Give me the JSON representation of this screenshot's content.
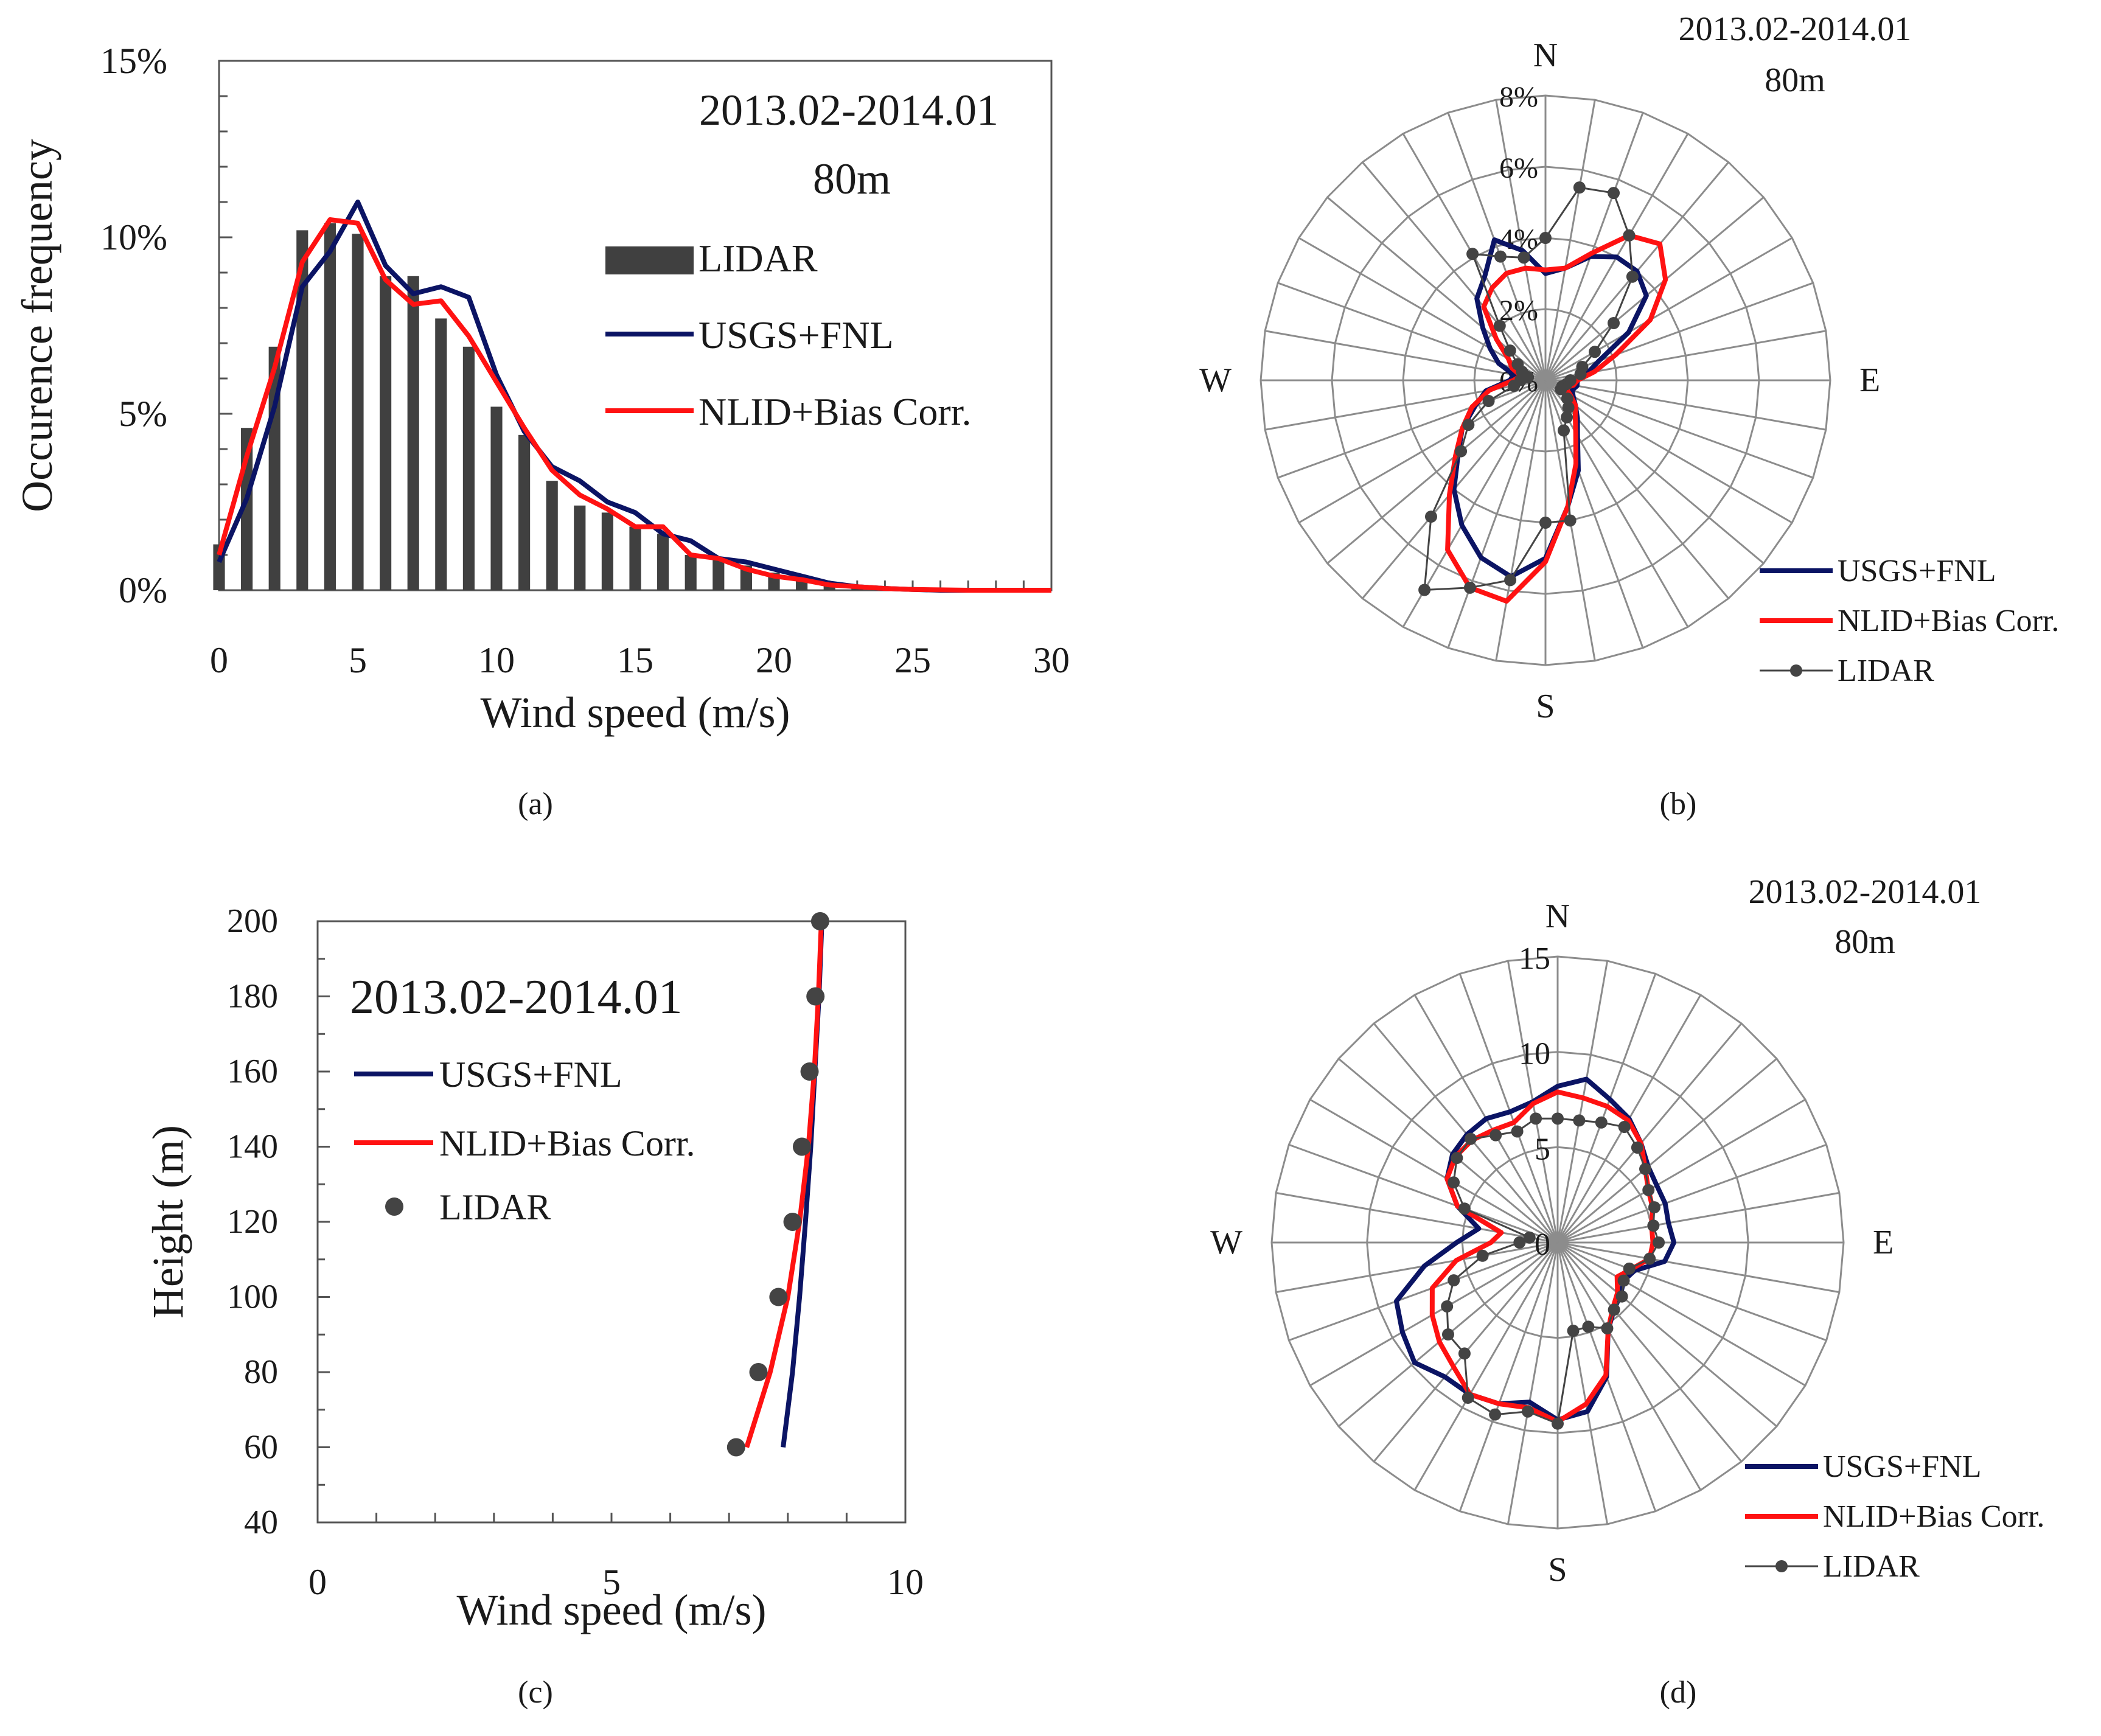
{
  "colors": {
    "usgs": "#0b1464",
    "nlid": "#ff1212",
    "lidar": "#444444",
    "bar": "#404040",
    "grid": "#8c8c8c",
    "axis": "#555555"
  },
  "chart_data": [
    {
      "id": "a",
      "type": "bar",
      "caption": "(a)",
      "annotation": [
        "2013.02-2014.01",
        "80m"
      ],
      "xlabel": "Wind speed (m/s)",
      "ylabel": "Occurence frequency",
      "xlim": [
        0,
        30
      ],
      "ylim": [
        0,
        15
      ],
      "xticks": [
        "0",
        "5",
        "10",
        "15",
        "20",
        "25",
        "30"
      ],
      "yticks": [
        "0%",
        "5%",
        "10%",
        "15%"
      ],
      "legend": [
        "LIDAR",
        "USGS+FNL",
        "NLID+Bias Corr."
      ],
      "x": [
        0,
        1,
        2,
        3,
        4,
        5,
        6,
        7,
        8,
        9,
        10,
        11,
        12,
        13,
        14,
        15,
        16,
        17,
        18,
        19,
        20,
        21,
        22,
        23,
        24,
        25,
        26,
        27,
        28,
        29,
        30
      ],
      "lidar_bars": [
        1.3,
        4.6,
        6.9,
        10.2,
        10.4,
        10.1,
        8.9,
        8.9,
        7.7,
        6.9,
        5.2,
        4.4,
        3.1,
        2.4,
        2.2,
        1.8,
        1.6,
        1.0,
        0.9,
        0.7,
        0.5,
        0.35,
        0.2,
        0.1,
        0.05,
        0.03,
        0.02,
        0.01,
        0,
        0,
        0
      ],
      "series": [
        {
          "name": "USGS+FNL",
          "values": [
            0.8,
            2.6,
            5.2,
            8.6,
            9.6,
            11.0,
            9.2,
            8.4,
            8.6,
            8.3,
            6.1,
            4.5,
            3.5,
            3.1,
            2.5,
            2.2,
            1.6,
            1.4,
            0.9,
            0.8,
            0.6,
            0.4,
            0.2,
            0.1,
            0.05,
            0.02,
            0,
            0,
            0,
            0,
            0
          ]
        },
        {
          "name": "NLID+Bias Corr.",
          "values": [
            1.0,
            3.8,
            6.3,
            9.3,
            10.5,
            10.4,
            8.8,
            8.1,
            8.2,
            7.2,
            5.9,
            4.6,
            3.4,
            2.7,
            2.3,
            1.8,
            1.8,
            1.0,
            0.9,
            0.6,
            0.4,
            0.3,
            0.15,
            0.1,
            0.05,
            0.02,
            0.01,
            0,
            0,
            0,
            0
          ]
        }
      ]
    },
    {
      "id": "b",
      "type": "radar",
      "caption": "(b)",
      "annotation": [
        "2013.02-2014.01",
        "80m"
      ],
      "direction_labels": [
        "N",
        "E",
        "S",
        "W"
      ],
      "rmax": 8,
      "ring_values": [
        0,
        2,
        4,
        6,
        8
      ],
      "ring_labels": [
        "0%",
        "2%",
        "4%",
        "6%",
        "8%"
      ],
      "n_directions": 36,
      "legend": [
        "USGS+FNL",
        "NLID+Bias Corr.",
        "LIDAR"
      ],
      "series": [
        {
          "name": "USGS+FNL",
          "values": [
            3.0,
            3.2,
            3.7,
            4.0,
            4.0,
            3.7,
            2.7,
            1.6,
            1.2,
            0.9,
            0.9,
            0.8,
            0.9,
            1.1,
            1.4,
            1.8,
            2.7,
            3.6,
            5.0,
            5.6,
            5.3,
            4.7,
            4.0,
            3.2,
            2.7,
            2.1,
            1.7,
            1.0,
            0.9,
            1.4,
            1.8,
            2.3,
            3.0,
            3.4,
            4.2,
            3.7
          ]
        },
        {
          "name": "NLID+Bias Corr.",
          "values": [
            3.1,
            3.2,
            3.8,
            4.7,
            5.0,
            4.4,
            3.4,
            2.1,
            1.4,
            0.9,
            0.8,
            0.6,
            0.8,
            1.1,
            1.3,
            1.7,
            2.5,
            3.6,
            5.1,
            6.3,
            6.2,
            5.5,
            4.2,
            3.3,
            2.7,
            2.2,
            1.6,
            0.9,
            0.7,
            1.0,
            1.2,
            1.8,
            2.7,
            3.0,
            3.2,
            3.2
          ]
        },
        {
          "name": "LIDAR",
          "values": [
            4.0,
            5.5,
            5.6,
            4.7,
            3.8,
            2.5,
            1.6,
            1.1,
            1.0,
            0.7,
            0.6,
            0.5,
            0.5,
            0.8,
            1.0,
            1.2,
            1.5,
            4.0,
            4.0,
            5.7,
            6.2,
            6.8,
            5.0,
            3.1,
            2.5,
            1.7,
            0.9,
            0.7,
            0.5,
            0.7,
            0.9,
            1.3,
            2.0,
            4.1,
            3.7,
            3.5
          ]
        }
      ]
    },
    {
      "id": "c",
      "type": "line",
      "caption": "(c)",
      "annotation": "2013.02-2014.01",
      "xlabel": "Wind speed (m/s)",
      "ylabel": "Height (m)",
      "xlim": [
        0,
        10
      ],
      "ylim": [
        40,
        200
      ],
      "xticks": [
        "0",
        "5",
        "10"
      ],
      "yticks": [
        "40",
        "60",
        "80",
        "100",
        "120",
        "140",
        "160",
        "180",
        "200"
      ],
      "legend": [
        "USGS+FNL",
        "NLID+Bias Corr.",
        "LIDAR"
      ],
      "series": [
        {
          "name": "USGS+FNL",
          "x": [
            7.92,
            8.08,
            8.2,
            8.3,
            8.39,
            8.46,
            8.53,
            8.58
          ],
          "y": [
            60,
            80,
            100,
            120,
            140,
            160,
            180,
            200
          ]
        },
        {
          "name": "NLID+Bias Corr.",
          "x": [
            7.3,
            7.7,
            8.0,
            8.2,
            8.35,
            8.45,
            8.52,
            8.57
          ],
          "y": [
            60,
            80,
            100,
            120,
            140,
            160,
            180,
            200
          ]
        },
        {
          "name": "LIDAR",
          "x": [
            7.12,
            7.5,
            7.84,
            8.08,
            8.24,
            8.37,
            8.47,
            8.55
          ],
          "y": [
            60,
            80,
            100,
            120,
            140,
            160,
            180,
            200
          ]
        }
      ]
    },
    {
      "id": "d",
      "type": "radar",
      "caption": "(d)",
      "annotation": [
        "2013.02-2014.01",
        "80m"
      ],
      "direction_labels": [
        "N",
        "E",
        "S",
        "W"
      ],
      "rmax": 15,
      "ring_values": [
        0,
        5,
        10,
        15
      ],
      "ring_labels": [
        "0",
        "5",
        "10",
        "15"
      ],
      "n_directions": 36,
      "legend": [
        "USGS+FNL",
        "NLID+Bias Corr.",
        "LIDAR"
      ],
      "series": [
        {
          "name": "USGS+FNL",
          "values": [
            8.2,
            8.7,
            8.0,
            7.5,
            6.8,
            6.2,
            6.0,
            6.0,
            5.9,
            6.1,
            5.7,
            4.3,
            4.0,
            4.3,
            4.6,
            5.3,
            7.5,
            9.0,
            9.3,
            8.5,
            9.0,
            9.2,
            9.2,
            9.8,
            9.4,
            9.0,
            7.1,
            5.3,
            4.2,
            5.6,
            6.7,
            7.2,
            7.4,
            7.5,
            7.3,
            7.5
          ]
        },
        {
          "name": "NLID+Bias Corr.",
          "values": [
            7.9,
            7.7,
            7.6,
            7.4,
            6.8,
            6.0,
            5.5,
            5.3,
            5.0,
            5.0,
            4.9,
            4.1,
            3.6,
            4.1,
            4.5,
            5.3,
            7.4,
            8.6,
            9.4,
            8.8,
            9.0,
            9.2,
            8.5,
            8.1,
            7.6,
            7.0,
            5.4,
            3.5,
            3.0,
            5.6,
            6.7,
            7.0,
            7.0,
            6.8,
            6.7,
            7.4
          ]
        },
        {
          "name": "LIDAR",
          "values": [
            6.5,
            6.5,
            6.7,
            7.0,
            6.5,
            6.0,
            5.5,
            5.4,
            5.1,
            5.3,
            4.9,
            4.0,
            4.0,
            4.4,
            4.6,
            5.2,
            4.7,
            4.7,
            9.5,
            9.0,
            9.6,
            9.4,
            7.6,
            7.5,
            6.7,
            5.8,
            4.0,
            2.0,
            1.5,
            5.2,
            6.3,
            6.9,
            7.1,
            6.5,
            6.2,
            6.6
          ]
        }
      ]
    }
  ]
}
